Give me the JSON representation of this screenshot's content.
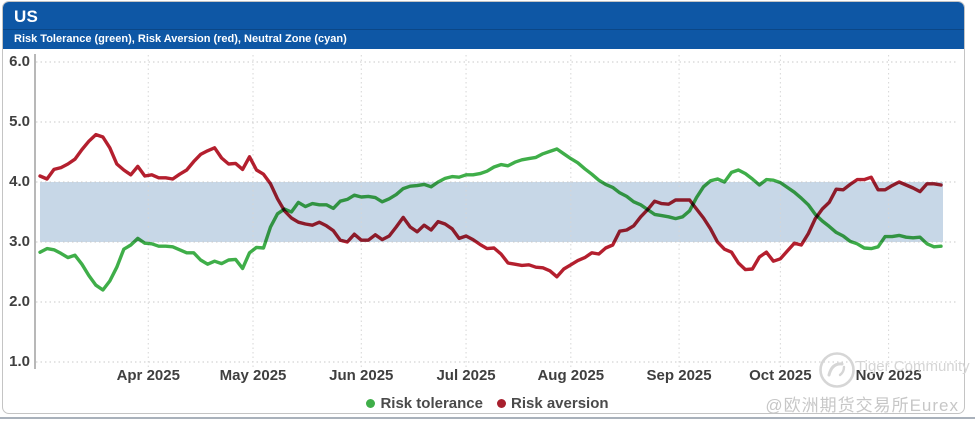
{
  "header": {
    "title": "US",
    "subtitle": "Risk Tolerance (green), Risk Aversion (red), Neutral Zone (cyan)"
  },
  "chart_data": {
    "type": "line",
    "title": "US",
    "subtitle": "Risk Tolerance (green), Risk Aversion (red), Neutral Zone (cyan)",
    "x_axis": {
      "epoch": "days since 2025-03-01",
      "end_day": 258,
      "sample_interval_days": 2,
      "ticks": [
        {
          "label": "Apr 2025",
          "day": 31
        },
        {
          "label": "May 2025",
          "day": 61
        },
        {
          "label": "Jun 2025",
          "day": 92
        },
        {
          "label": "Jul 2025",
          "day": 122
        },
        {
          "label": "Aug 2025",
          "day": 152
        },
        {
          "label": "Sep 2025",
          "day": 183
        },
        {
          "label": "Oct 2025",
          "day": 212
        },
        {
          "label": "Nov 2025",
          "day": 243
        }
      ]
    },
    "y_axis": {
      "min": 1.0,
      "max": 6.0,
      "ticks": [
        {
          "label": "6.0",
          "value": 6.0
        },
        {
          "label": "5.0",
          "value": 5.0
        },
        {
          "label": "4.0",
          "value": 4.0
        },
        {
          "label": "3.0",
          "value": 3.0
        },
        {
          "label": "2.0",
          "value": 2.0
        },
        {
          "label": "1.0",
          "value": 1.0
        }
      ],
      "gridlines": "dotted"
    },
    "neutral_zone": {
      "from": 3.0,
      "to": 4.0,
      "color": "#c7d7e7",
      "label": "Neutral Zone (cyan)"
    },
    "legend_position": "bottom-center",
    "series": [
      {
        "name": "Risk tolerance",
        "color": "#3fae49",
        "values": [
          2.83,
          2.89,
          2.87,
          2.81,
          2.74,
          2.78,
          2.63,
          2.44,
          2.28,
          2.2,
          2.35,
          2.58,
          2.88,
          2.95,
          3.06,
          2.98,
          2.97,
          2.93,
          2.93,
          2.92,
          2.87,
          2.82,
          2.82,
          2.7,
          2.63,
          2.68,
          2.64,
          2.7,
          2.71,
          2.56,
          2.82,
          2.91,
          2.9,
          3.25,
          3.47,
          3.55,
          3.5,
          3.66,
          3.59,
          3.64,
          3.62,
          3.62,
          3.56,
          3.68,
          3.71,
          3.78,
          3.75,
          3.76,
          3.74,
          3.67,
          3.72,
          3.79,
          3.89,
          3.93,
          3.94,
          3.96,
          3.92,
          4.0,
          4.06,
          4.09,
          4.08,
          4.12,
          4.12,
          4.14,
          4.18,
          4.25,
          4.29,
          4.27,
          4.33,
          4.37,
          4.39,
          4.41,
          4.47,
          4.51,
          4.55,
          4.47,
          4.39,
          4.32,
          4.22,
          4.13,
          4.03,
          3.96,
          3.91,
          3.82,
          3.76,
          3.67,
          3.62,
          3.54,
          3.46,
          3.44,
          3.42,
          3.39,
          3.42,
          3.52,
          3.74,
          3.92,
          4.02,
          4.05,
          4.0,
          4.16,
          4.2,
          4.14,
          4.05,
          3.95,
          4.04,
          4.03,
          3.99,
          3.91,
          3.83,
          3.73,
          3.62,
          3.46,
          3.35,
          3.26,
          3.16,
          3.1,
          3.01,
          2.97,
          2.9,
          2.89,
          2.92,
          3.09,
          3.09,
          3.11,
          3.08,
          3.07,
          3.08,
          2.97,
          2.92,
          2.93
        ]
      },
      {
        "name": "Risk aversion",
        "color": "#b41f2e",
        "values": [
          4.1,
          4.05,
          4.21,
          4.24,
          4.3,
          4.38,
          4.54,
          4.68,
          4.79,
          4.75,
          4.57,
          4.3,
          4.2,
          4.12,
          4.26,
          4.1,
          4.12,
          4.07,
          4.07,
          4.05,
          4.13,
          4.2,
          4.34,
          4.46,
          4.52,
          4.57,
          4.4,
          4.3,
          4.31,
          4.21,
          4.42,
          4.2,
          4.13,
          3.97,
          3.72,
          3.52,
          3.4,
          3.33,
          3.3,
          3.28,
          3.33,
          3.27,
          3.19,
          3.03,
          3.0,
          3.13,
          3.03,
          3.03,
          3.12,
          3.04,
          3.1,
          3.25,
          3.41,
          3.25,
          3.17,
          3.28,
          3.2,
          3.34,
          3.3,
          3.22,
          3.06,
          3.1,
          3.04,
          2.96,
          2.89,
          2.9,
          2.8,
          2.65,
          2.63,
          2.61,
          2.62,
          2.58,
          2.57,
          2.52,
          2.42,
          2.55,
          2.62,
          2.69,
          2.74,
          2.82,
          2.8,
          2.9,
          2.95,
          3.18,
          3.2,
          3.27,
          3.42,
          3.54,
          3.68,
          3.64,
          3.63,
          3.7,
          3.7,
          3.7,
          3.55,
          3.4,
          3.22,
          3.0,
          2.88,
          2.83,
          2.65,
          2.54,
          2.55,
          2.75,
          2.83,
          2.68,
          2.72,
          2.85,
          2.98,
          2.95,
          3.14,
          3.39,
          3.55,
          3.66,
          3.88,
          3.87,
          3.96,
          4.04,
          4.04,
          4.08,
          3.87,
          3.87,
          3.94,
          4.0,
          3.95,
          3.9,
          3.84,
          3.97,
          3.97,
          3.95
        ]
      }
    ]
  },
  "legend": {
    "items": [
      {
        "label": "Risk tolerance",
        "color": "#3fae49"
      },
      {
        "label": "Risk aversion",
        "color": "#a8202e"
      }
    ]
  },
  "watermark": {
    "community": "Tiger Community",
    "handle": "@欧洲期货交易所Eurex",
    "logo": "hand-gesture-icon"
  },
  "colors": {
    "header_bg": "#0e57a5",
    "band": "#c7d7e7",
    "grid": "#c9c9c9",
    "axis": "#9a9a9a",
    "tick_text": "#3f3f3f"
  }
}
